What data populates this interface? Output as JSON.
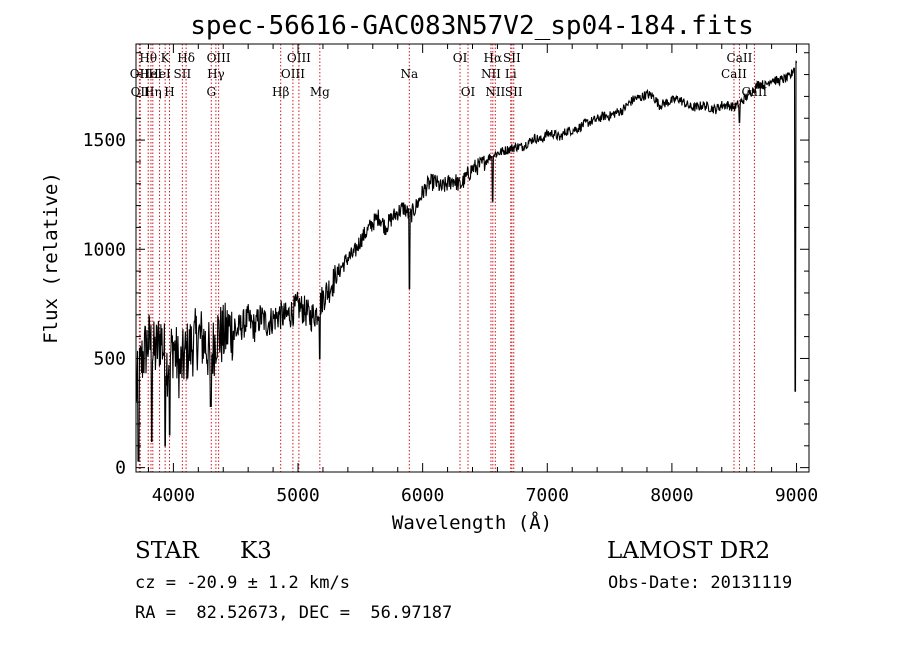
{
  "chart_data": {
    "type": "line",
    "title": "spec-56616-GAC083N57V2_sp04-184.fits",
    "xlabel": "Wavelength (Å)",
    "ylabel": "Flux (relative)",
    "xlim": [
      3700,
      9100
    ],
    "ylim": [
      -20,
      1940
    ],
    "xticks": [
      4000,
      5000,
      6000,
      7000,
      8000,
      9000
    ],
    "xtick_labels": [
      "4000",
      "5000",
      "6000",
      "7000",
      "8000",
      "9000"
    ],
    "yticks": [
      0,
      500,
      1000,
      1500
    ],
    "ytick_labels": [
      "0",
      "500",
      "1000",
      "1500"
    ],
    "grid": false,
    "series": [
      {
        "name": "flux",
        "x": [
          3700,
          3750,
          3800,
          3850,
          3900,
          3950,
          4000,
          4050,
          4100,
          4150,
          4200,
          4250,
          4300,
          4350,
          4400,
          4450,
          4500,
          4550,
          4600,
          4650,
          4700,
          4750,
          4800,
          4850,
          4900,
          4950,
          5000,
          5050,
          5100,
          5150,
          5200,
          5250,
          5300,
          5350,
          5400,
          5450,
          5500,
          5550,
          5600,
          5650,
          5700,
          5750,
          5800,
          5850,
          5900,
          5950,
          6000,
          6050,
          6100,
          6150,
          6200,
          6250,
          6300,
          6350,
          6400,
          6450,
          6500,
          6550,
          6600,
          6650,
          6700,
          6750,
          6800,
          6850,
          6900,
          6950,
          7000,
          7050,
          7100,
          7150,
          7200,
          7250,
          7300,
          7350,
          7400,
          7450,
          7500,
          7550,
          7600,
          7650,
          7700,
          7750,
          7800,
          7850,
          7900,
          7950,
          8000,
          8050,
          8100,
          8150,
          8200,
          8250,
          8300,
          8350,
          8400,
          8450,
          8500,
          8550,
          8600,
          8650,
          8700,
          8750,
          8800,
          8850,
          8900,
          8950,
          9000
        ],
        "values": [
          350,
          500,
          580,
          520,
          600,
          470,
          560,
          450,
          520,
          560,
          600,
          580,
          500,
          620,
          600,
          640,
          620,
          650,
          680,
          640,
          690,
          660,
          680,
          700,
          690,
          710,
          740,
          720,
          690,
          710,
          780,
          820,
          870,
          920,
          960,
          980,
          1040,
          1080,
          1120,
          1150,
          1100,
          1140,
          1170,
          1190,
          1150,
          1200,
          1260,
          1300,
          1310,
          1280,
          1300,
          1320,
          1290,
          1330,
          1370,
          1380,
          1400,
          1430,
          1440,
          1450,
          1460,
          1470,
          1470,
          1490,
          1510,
          1500,
          1530,
          1530,
          1510,
          1540,
          1545,
          1555,
          1575,
          1585,
          1595,
          1610,
          1610,
          1625,
          1635,
          1665,
          1690,
          1695,
          1710,
          1700,
          1660,
          1670,
          1680,
          1690,
          1670,
          1650,
          1650,
          1660,
          1650,
          1640,
          1660,
          1660,
          1650,
          1670,
          1700,
          1730,
          1760,
          1750,
          1780,
          1770,
          1780,
          1790,
          1860
        ]
      }
    ],
    "dips": [
      {
        "x": 3720,
        "value": 30
      },
      {
        "x": 3825,
        "value": 120
      },
      {
        "x": 3935,
        "value": 100
      },
      {
        "x": 3970,
        "value": 150
      },
      {
        "x": 4300,
        "value": 280
      },
      {
        "x": 5175,
        "value": 500
      },
      {
        "x": 5893,
        "value": 820
      },
      {
        "x": 6563,
        "value": 1220
      },
      {
        "x": 8542,
        "value": 1580
      },
      {
        "x": 8990,
        "value": 350
      }
    ],
    "line_markers": [
      {
        "x": 3727,
        "label": "OII",
        "row": 2
      },
      {
        "x": 3734,
        "label": "OII",
        "row": 3
      },
      {
        "x": 3798,
        "label": "Hθ",
        "row": 1
      },
      {
        "x": 3820,
        "label": "HeI",
        "row": 2
      },
      {
        "x": 3835,
        "label": "Hη",
        "row": 3
      },
      {
        "x": 3889,
        "label": "HeI",
        "row": 2
      },
      {
        "x": 3934,
        "label": "K",
        "row": 1
      },
      {
        "x": 3969,
        "label": "H",
        "row": 3
      },
      {
        "x": 4072,
        "label": "SII",
        "row": 2
      },
      {
        "x": 4102,
        "label": "Hδ",
        "row": 1
      },
      {
        "x": 4304,
        "label": "G",
        "row": 3
      },
      {
        "x": 4341,
        "label": "Hγ",
        "row": 2
      },
      {
        "x": 4363,
        "label": "OIII",
        "row": 1
      },
      {
        "x": 4861,
        "label": "Hβ",
        "row": 3
      },
      {
        "x": 4959,
        "label": "OIII",
        "row": 2
      },
      {
        "x": 5007,
        "label": "OIII",
        "row": 1
      },
      {
        "x": 5175,
        "label": "Mg",
        "row": 3
      },
      {
        "x": 5893,
        "label": "Na",
        "row": 2
      },
      {
        "x": 6300,
        "label": "OI",
        "row": 1
      },
      {
        "x": 6364,
        "label": "OI",
        "row": 3
      },
      {
        "x": 6548,
        "label": "NII",
        "row": 2
      },
      {
        "x": 6563,
        "label": "Hα",
        "row": 1
      },
      {
        "x": 6583,
        "label": "NII",
        "row": 3
      },
      {
        "x": 6707,
        "label": "Li",
        "row": 2
      },
      {
        "x": 6716,
        "label": "SII",
        "row": 1
      },
      {
        "x": 6731,
        "label": "SII",
        "row": 3
      },
      {
        "x": 8498,
        "label": "CaII",
        "row": 2
      },
      {
        "x": 8542,
        "label": "CaII",
        "row": 1
      },
      {
        "x": 8662,
        "label": "CaII",
        "row": 3
      }
    ]
  },
  "info": {
    "object_class": "STAR",
    "subclass": "K3",
    "survey": "LAMOST DR2",
    "redshift_text": "cz = -20.9 ± 1.2 km/s",
    "obs_date_text": "Obs-Date: 20131119",
    "coords_text": "RA =  82.52673, DEC =  56.97187"
  },
  "colors": {
    "marker_line": "#d2161e",
    "spectrum": "#000000",
    "axes": "#000000"
  }
}
